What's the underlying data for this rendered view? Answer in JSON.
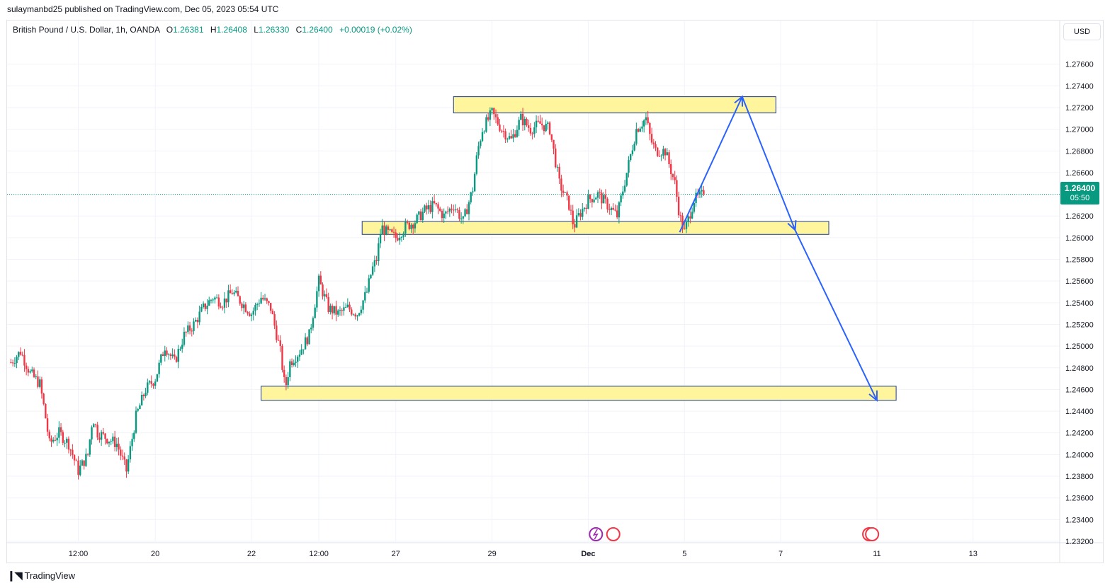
{
  "header": {
    "published": "sulaymanbd25 published on TradingView.com, Dec 05, 2023 05:54 UTC"
  },
  "legend": {
    "symbol": "British Pound / U.S. Dollar, 1h, OANDA",
    "o_label": "O",
    "o_value": "1.26381",
    "h_label": "H",
    "h_value": "1.26408",
    "l_label": "L",
    "l_value": "1.26330",
    "c_label": "C",
    "c_value": "1.26400",
    "change": "+0.00019 (+0.02%)"
  },
  "currency_button": "USD",
  "last_price": {
    "value": "1.26400",
    "countdown": "05:50",
    "color": "#089981"
  },
  "footer": {
    "brand": "TradingView"
  },
  "colors": {
    "up": "#089981",
    "down": "#f23645",
    "zone_fill": "#fff59d",
    "zone_border": "#1e3a8a",
    "arrow": "#2962ff",
    "grid": "#f0f3fa"
  },
  "chart_data": {
    "type": "candlestick",
    "ylim": [
      1.232,
      1.278
    ],
    "y_ticks": [
      "1.27600",
      "1.27400",
      "1.27200",
      "1.27000",
      "1.26800",
      "1.26600",
      "1.26400",
      "1.26200",
      "1.26000",
      "1.25800",
      "1.25600",
      "1.25400",
      "1.25200",
      "1.25000",
      "1.24800",
      "1.24600",
      "1.24400",
      "1.24200",
      "1.24000",
      "1.23800",
      "1.23600",
      "1.23400",
      "1.23200"
    ],
    "x_ticks": [
      {
        "label": "12:00",
        "t": 7
      },
      {
        "label": "20",
        "t": 15
      },
      {
        "label": "22",
        "t": 25
      },
      {
        "label": "12:00",
        "t": 32
      },
      {
        "label": "27",
        "t": 40
      },
      {
        "label": "29",
        "t": 50
      },
      {
        "label": "Dec",
        "t": 60
      },
      {
        "label": "5",
        "t": 70
      },
      {
        "label": "7",
        "t": 80
      },
      {
        "label": "11",
        "t": 90
      },
      {
        "label": "13",
        "t": 100
      }
    ],
    "price_path": [
      [
        0,
        1.2485
      ],
      [
        1,
        1.2495
      ],
      [
        2,
        1.2475
      ],
      [
        3,
        1.2465
      ],
      [
        3.5,
        1.244
      ],
      [
        4,
        1.241
      ],
      [
        5,
        1.242
      ],
      [
        6,
        1.241
      ],
      [
        7,
        1.2385
      ],
      [
        8,
        1.24
      ],
      [
        8.5,
        1.2435
      ],
      [
        9,
        1.242
      ],
      [
        10,
        1.2415
      ],
      [
        11,
        1.241
      ],
      [
        12,
        1.2385
      ],
      [
        13,
        1.2435
      ],
      [
        14,
        1.246
      ],
      [
        15,
        1.247
      ],
      [
        16,
        1.25
      ],
      [
        17,
        1.2485
      ],
      [
        18,
        1.251
      ],
      [
        19,
        1.252
      ],
      [
        20,
        1.2535
      ],
      [
        21,
        1.2545
      ],
      [
        22,
        1.254
      ],
      [
        23,
        1.255
      ],
      [
        24,
        1.254
      ],
      [
        25,
        1.253
      ],
      [
        26,
        1.2545
      ],
      [
        27,
        1.2535
      ],
      [
        28,
        1.2495
      ],
      [
        28.5,
        1.246
      ],
      [
        29,
        1.2485
      ],
      [
        30,
        1.2495
      ],
      [
        31,
        1.251
      ],
      [
        32,
        1.256
      ],
      [
        33,
        1.2535
      ],
      [
        34,
        1.253
      ],
      [
        35,
        1.2535
      ],
      [
        36,
        1.253
      ],
      [
        37,
        1.255
      ],
      [
        37.5,
        1.257
      ],
      [
        38,
        1.258
      ],
      [
        38.5,
        1.261
      ],
      [
        39,
        1.2605
      ],
      [
        40,
        1.26
      ],
      [
        41,
        1.261
      ],
      [
        42,
        1.2615
      ],
      [
        43,
        1.2625
      ],
      [
        44,
        1.263
      ],
      [
        45,
        1.262
      ],
      [
        46,
        1.263
      ],
      [
        47,
        1.2615
      ],
      [
        48,
        1.2645
      ],
      [
        48.5,
        1.268
      ],
      [
        49,
        1.27
      ],
      [
        50,
        1.2715
      ],
      [
        51,
        1.27
      ],
      [
        52,
        1.269
      ],
      [
        53,
        1.271
      ],
      [
        54,
        1.27
      ],
      [
        55,
        1.2705
      ],
      [
        56,
        1.27
      ],
      [
        57,
        1.265
      ],
      [
        58,
        1.263
      ],
      [
        58.5,
        1.261
      ],
      [
        59,
        1.262
      ],
      [
        60,
        1.2635
      ],
      [
        61,
        1.264
      ],
      [
        62,
        1.263
      ],
      [
        63,
        1.262
      ],
      [
        64,
        1.266
      ],
      [
        65,
        1.27
      ],
      [
        66,
        1.271
      ],
      [
        66.5,
        1.269
      ],
      [
        67,
        1.268
      ],
      [
        68,
        1.268
      ],
      [
        69,
        1.265
      ],
      [
        69.5,
        1.262
      ],
      [
        70,
        1.2605
      ],
      [
        70.5,
        1.262
      ],
      [
        71,
        1.2635
      ],
      [
        72,
        1.264
      ]
    ],
    "zones": [
      {
        "top": 1.273,
        "bottom": 1.2715,
        "t_start": 46,
        "t_end": 79.5
      },
      {
        "top": 1.2615,
        "bottom": 1.2603,
        "t_start": 36.5,
        "t_end": 85
      },
      {
        "top": 1.2463,
        "bottom": 1.245,
        "t_start": 26,
        "t_end": 92
      }
    ],
    "projection": [
      {
        "t": 69.5,
        "y": 1.2605
      },
      {
        "t": 76,
        "y": 1.273
      },
      {
        "t": 81.5,
        "y": 1.2607
      },
      {
        "t": 90,
        "y": 1.245
      }
    ],
    "last_close": 1.264
  }
}
